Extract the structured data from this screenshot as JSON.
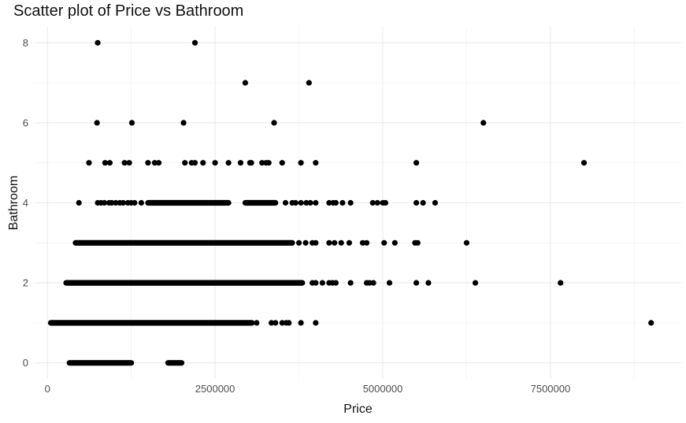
{
  "chart_data": {
    "type": "scatter",
    "title": "Scatter plot of Price vs Bathroom",
    "xlabel": "Price",
    "ylabel": "Bathroom",
    "xlim": [
      -190000,
      9450000
    ],
    "ylim": [
      -0.4,
      8.4
    ],
    "x_ticks": [
      0,
      2500000,
      5000000,
      7500000
    ],
    "x_tick_labels": [
      "0",
      "2500000",
      "5000000",
      "7500000"
    ],
    "y_ticks": [
      0,
      2,
      4,
      6,
      8
    ],
    "y_tick_labels": [
      "0",
      "2",
      "4",
      "6",
      "8"
    ],
    "grid": true,
    "point_color": "#000000",
    "bands": [
      {
        "y": 0,
        "ranges": [
          [
            330000,
            1250000
          ],
          [
            1800000,
            2000000
          ]
        ]
      },
      {
        "y": 1,
        "ranges": [
          [
            50000,
            3050000
          ]
        ]
      },
      {
        "y": 2,
        "ranges": [
          [
            280000,
            3800000
          ]
        ]
      },
      {
        "y": 3,
        "ranges": [
          [
            420000,
            3650000
          ]
        ]
      },
      {
        "y": 4,
        "ranges": [
          [
            1500000,
            2700000
          ],
          [
            2950000,
            3400000
          ]
        ]
      }
    ],
    "points": [
      {
        "y": 8,
        "x": [
          750000,
          2200000
        ]
      },
      {
        "y": 7,
        "x": [
          2950000,
          3900000
        ]
      },
      {
        "y": 6,
        "x": [
          740000,
          1260000,
          2030000,
          3380000,
          6500000
        ]
      },
      {
        "y": 5,
        "x": [
          620000,
          860000,
          930000,
          1150000,
          1220000,
          1500000,
          1600000,
          1660000,
          2050000,
          2150000,
          2200000,
          2320000,
          2500000,
          2700000,
          2880000,
          3020000,
          3040000,
          3200000,
          3260000,
          3300000,
          3500000,
          3780000,
          4000000,
          5500000,
          8000000
        ]
      },
      {
        "y": 4,
        "x": [
          470000,
          750000,
          800000,
          850000,
          920000,
          960000,
          1020000,
          1080000,
          1130000,
          1200000,
          1250000,
          1300000,
          1400000,
          3550000,
          3650000,
          3700000,
          3780000,
          3860000,
          3920000,
          4000000,
          4200000,
          4260000,
          4300000,
          4400000,
          4520000,
          4850000,
          4920000,
          5000000,
          5040000,
          5500000,
          5600000,
          5780000
        ]
      },
      {
        "y": 3,
        "x": [
          3750000,
          3850000,
          3950000,
          4000000,
          4200000,
          4280000,
          4380000,
          4500000,
          4700000,
          4760000,
          5020000,
          5180000,
          5480000,
          5520000,
          6250000
        ]
      },
      {
        "y": 2,
        "x": [
          3950000,
          4000000,
          4100000,
          4200000,
          4250000,
          4300000,
          4520000,
          4760000,
          4800000,
          4860000,
          5100000,
          5500000,
          5680000,
          6380000,
          7650000
        ]
      },
      {
        "y": 1,
        "x": [
          3120000,
          3340000,
          3400000,
          3500000,
          3560000,
          3600000,
          3780000,
          4000000,
          9000000
        ]
      }
    ]
  }
}
